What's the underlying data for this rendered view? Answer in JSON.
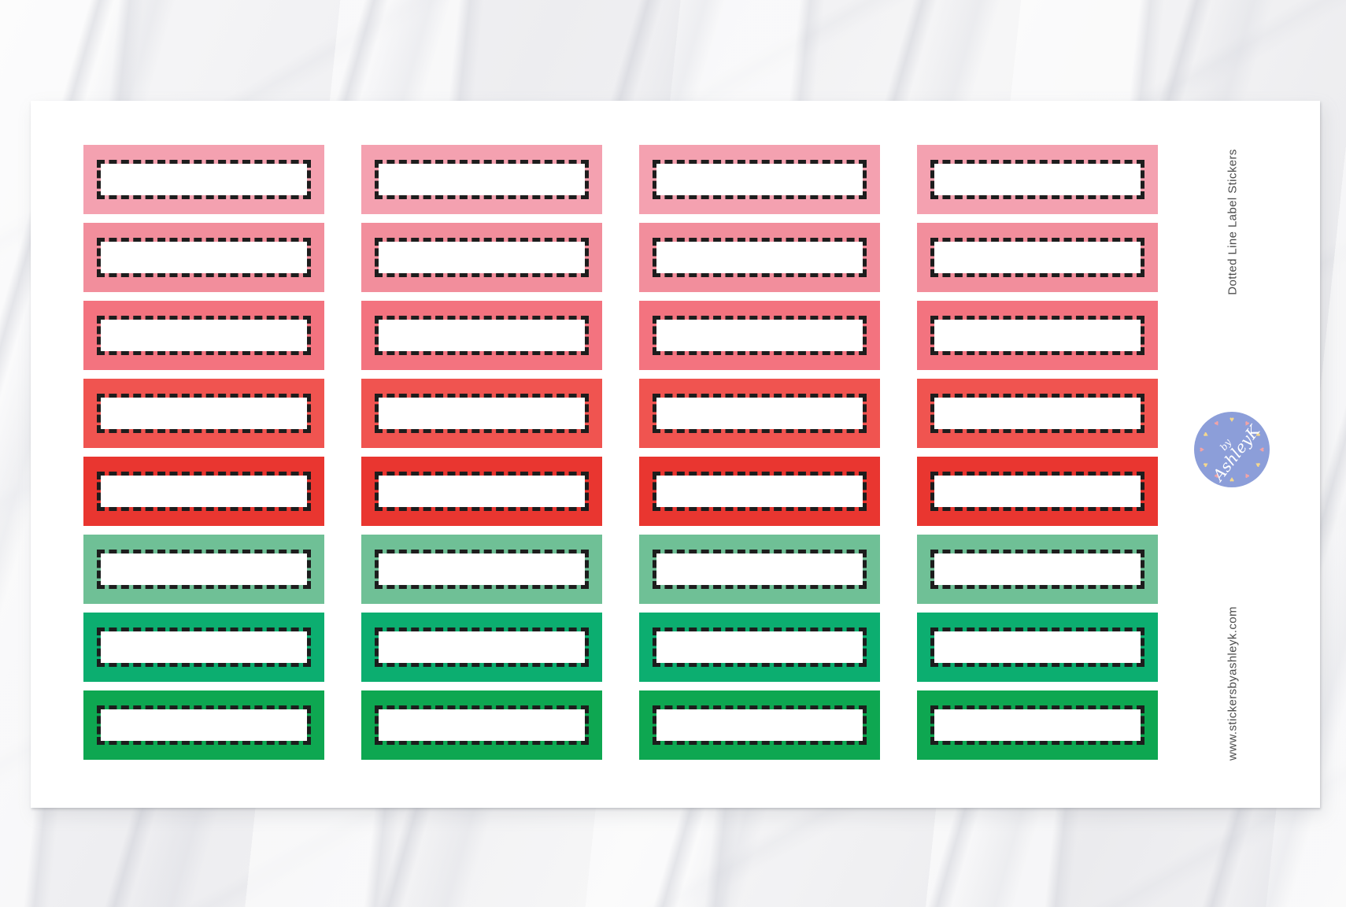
{
  "product": {
    "title": "Dotted Line Label Stickers",
    "website": "www.stickersbyashleyk.com",
    "label_text_color": "#4C4C4C"
  },
  "sheet": {
    "columns": 4,
    "row_colors": [
      {
        "name": "light-pink",
        "hex": "#F4A1B0"
      },
      {
        "name": "pink",
        "hex": "#F28E9C"
      },
      {
        "name": "coral-pink",
        "hex": "#F3737F"
      },
      {
        "name": "coral-red",
        "hex": "#F05450"
      },
      {
        "name": "red",
        "hex": "#E93630"
      },
      {
        "name": "mint-green",
        "hex": "#6FC096"
      },
      {
        "name": "jade-green",
        "hex": "#0CAE70"
      },
      {
        "name": "green",
        "hex": "#0EA751"
      }
    ],
    "sticker_fill": "#FFFFFF",
    "dash_color": "#1D1D1D"
  },
  "logo": {
    "line1": "by",
    "line2": "AshleyK",
    "circle_color": "#8C9ED9",
    "text_color": "#FFFFFF",
    "heart_glyph": "♥",
    "heart_colors": [
      "#F6D88C",
      "#F2A3A6"
    ],
    "hearts_count": 12
  }
}
